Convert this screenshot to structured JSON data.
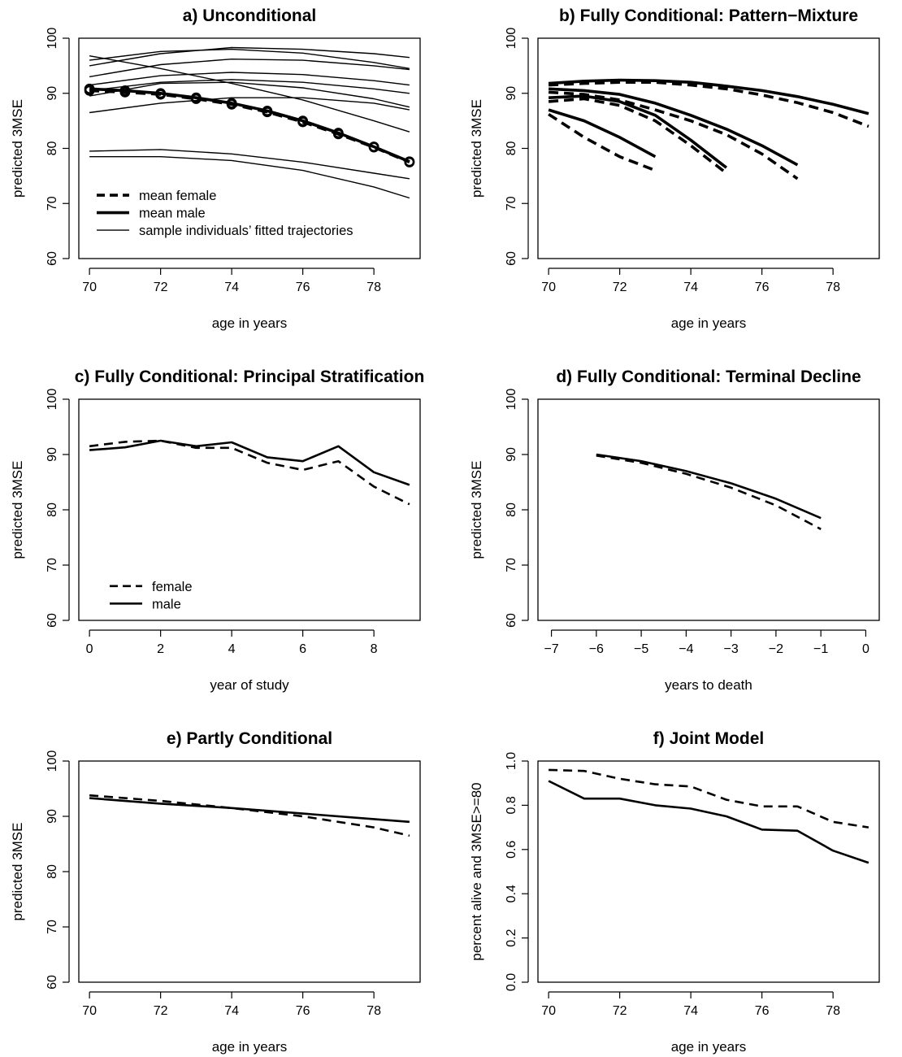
{
  "chart_data": [
    {
      "type": "line",
      "title": "a) Unconditional",
      "xlabel": "age in years",
      "ylabel": "predicted 3MSE",
      "xlim": [
        69.7,
        79.3
      ],
      "ylim": [
        60,
        100
      ],
      "xticks": [
        70,
        72,
        74,
        76,
        78
      ],
      "yticks": [
        60,
        70,
        80,
        90,
        100
      ],
      "legend_position": "bottom-left",
      "legend": [
        {
          "label": "mean female",
          "style": "dashed-thick"
        },
        {
          "label": "mean male",
          "style": "solid-thick"
        },
        {
          "label": "sample individuals’ fitted trajectories",
          "style": "solid-thin"
        }
      ],
      "series": [
        {
          "style": "dashed-thick",
          "markers": true,
          "x": [
            70,
            71,
            72,
            73,
            74,
            75,
            76,
            77,
            78,
            79
          ],
          "y": [
            90.5,
            90.2,
            89.8,
            89.0,
            88.0,
            86.6,
            84.8,
            82.6,
            80.2,
            77.5
          ]
        },
        {
          "style": "solid-thick",
          "markers": true,
          "x": [
            70,
            71,
            72,
            73,
            74,
            75,
            76,
            77,
            78,
            79
          ],
          "y": [
            90.8,
            90.5,
            90.0,
            89.2,
            88.2,
            86.8,
            85.0,
            82.8,
            80.3,
            77.6
          ]
        },
        {
          "style": "solid-thin",
          "x": [
            70,
            72,
            74,
            76,
            78,
            79
          ],
          "y": [
            95.0,
            97.2,
            98.3,
            98.0,
            97.2,
            96.5
          ]
        },
        {
          "style": "solid-thin",
          "x": [
            70,
            72,
            74,
            76,
            78,
            79
          ],
          "y": [
            93.0,
            95.2,
            96.2,
            96.0,
            95.0,
            94.3
          ]
        },
        {
          "style": "solid-thin",
          "x": [
            70,
            72,
            74,
            76,
            78,
            79
          ],
          "y": [
            96.0,
            97.6,
            98.0,
            97.3,
            95.6,
            94.5
          ]
        },
        {
          "style": "solid-thin",
          "x": [
            70,
            72,
            74,
            76,
            78,
            79
          ],
          "y": [
            96.8,
            94.5,
            91.8,
            88.8,
            85.0,
            83.0
          ]
        },
        {
          "style": "solid-thin",
          "x": [
            70,
            72,
            74,
            76,
            78,
            79
          ],
          "y": [
            90.5,
            92.0,
            92.5,
            92.0,
            90.8,
            90.0
          ]
        },
        {
          "style": "solid-thin",
          "x": [
            70,
            72,
            74,
            76,
            78,
            79
          ],
          "y": [
            91.5,
            93.2,
            93.8,
            93.4,
            92.3,
            91.5
          ]
        },
        {
          "style": "solid-thin",
          "x": [
            70,
            72,
            74,
            76,
            78,
            79
          ],
          "y": [
            86.5,
            88.2,
            89.2,
            89.2,
            88.2,
            87.0
          ]
        },
        {
          "style": "solid-thin",
          "x": [
            70,
            72,
            74,
            76,
            78,
            79
          ],
          "y": [
            79.5,
            79.8,
            79.0,
            77.5,
            75.5,
            74.5
          ]
        },
        {
          "style": "solid-thin",
          "x": [
            70,
            72,
            74,
            76,
            78,
            79
          ],
          "y": [
            78.5,
            78.5,
            77.8,
            76.0,
            73.0,
            71.0
          ]
        },
        {
          "style": "solid-thin",
          "x": [
            70,
            72,
            74,
            76,
            78,
            79
          ],
          "y": [
            89.5,
            91.8,
            92.0,
            91.0,
            89.0,
            87.5
          ]
        }
      ]
    },
    {
      "type": "line",
      "title": "b) Fully Conditional:  Pattern−Mixture",
      "xlabel": "age in years",
      "ylabel": "predicted 3MSE",
      "xlim": [
        69.7,
        79.3
      ],
      "ylim": [
        60,
        100
      ],
      "xticks": [
        70,
        72,
        74,
        76,
        78
      ],
      "yticks": [
        60,
        70,
        80,
        90,
        100
      ],
      "series": [
        {
          "style": "solid-thick",
          "x": [
            70,
            71,
            72,
            73,
            74,
            75,
            76,
            77,
            78,
            79
          ],
          "y": [
            91.8,
            92.2,
            92.4,
            92.3,
            92.0,
            91.3,
            90.5,
            89.4,
            88.0,
            86.3
          ]
        },
        {
          "style": "dashed-thick",
          "x": [
            70,
            71,
            72,
            73,
            74,
            75,
            76,
            77,
            78,
            79
          ],
          "y": [
            91.5,
            91.8,
            92.0,
            92.0,
            91.5,
            90.8,
            89.7,
            88.3,
            86.5,
            84.0
          ]
        },
        {
          "style": "solid-thick",
          "x": [
            70,
            71,
            72,
            73,
            74,
            75,
            76,
            77
          ],
          "y": [
            90.8,
            90.5,
            89.8,
            88.2,
            86.0,
            83.5,
            80.5,
            77.0
          ]
        },
        {
          "style": "dashed-thick",
          "x": [
            70,
            71,
            72,
            73,
            74,
            75,
            76,
            77
          ],
          "y": [
            90.2,
            89.8,
            88.8,
            87.0,
            85.0,
            82.5,
            79.0,
            74.5
          ]
        },
        {
          "style": "solid-thick",
          "x": [
            70,
            71,
            72,
            73,
            74,
            75
          ],
          "y": [
            89.2,
            89.5,
            88.5,
            86.0,
            81.5,
            76.5
          ]
        },
        {
          "style": "dashed-thick",
          "x": [
            70,
            71,
            72,
            73,
            74,
            75
          ],
          "y": [
            88.5,
            89.0,
            87.8,
            85.0,
            80.5,
            75.5
          ]
        },
        {
          "style": "solid-thick",
          "x": [
            70,
            71,
            72,
            73
          ],
          "y": [
            87.0,
            85.0,
            82.0,
            78.5
          ]
        },
        {
          "style": "dashed-thick",
          "x": [
            70,
            71,
            72,
            73
          ],
          "y": [
            86.2,
            82.0,
            78.5,
            76.0
          ]
        }
      ]
    },
    {
      "type": "line",
      "title": "c) Fully Conditional: Principal Stratification",
      "xlabel": "year of study",
      "ylabel": "predicted 3MSE",
      "xlim": [
        -0.3,
        9.3
      ],
      "ylim": [
        60,
        100
      ],
      "xticks": [
        0,
        2,
        4,
        6,
        8
      ],
      "yticks": [
        60,
        70,
        80,
        90,
        100
      ],
      "legend_position": "bottom-left",
      "legend": [
        {
          "label": "female",
          "style": "dashed"
        },
        {
          "label": "male",
          "style": "solid"
        }
      ],
      "series": [
        {
          "name": "female",
          "style": "dashed",
          "x": [
            0,
            1,
            2,
            3,
            4,
            5,
            6,
            7,
            8,
            9
          ],
          "y": [
            91.5,
            92.3,
            92.5,
            91.2,
            91.2,
            88.5,
            87.2,
            88.8,
            84.2,
            81.0
          ]
        },
        {
          "name": "male",
          "style": "solid",
          "x": [
            0,
            1,
            2,
            3,
            4,
            5,
            6,
            7,
            8,
            9
          ],
          "y": [
            90.8,
            91.3,
            92.5,
            91.5,
            92.2,
            89.5,
            88.8,
            91.5,
            86.8,
            84.5
          ]
        }
      ]
    },
    {
      "type": "line",
      "title": "d) Fully Conditional:  Terminal Decline",
      "xlabel": "years to death",
      "ylabel": "predicted 3MSE",
      "xlim": [
        -7.3,
        0.3
      ],
      "ylim": [
        60,
        100
      ],
      "xticks": [
        -7,
        -6,
        -5,
        -4,
        -3,
        -2,
        -1,
        0
      ],
      "xtick_labels": [
        "−7",
        "−6",
        "−5",
        "−4",
        "−3",
        "−2",
        "−1",
        "0"
      ],
      "yticks": [
        60,
        70,
        80,
        90,
        100
      ],
      "series": [
        {
          "style": "solid",
          "x": [
            -6,
            -5,
            -4,
            -3,
            -2,
            -1
          ],
          "y": [
            90.0,
            88.8,
            87.0,
            84.8,
            82.0,
            78.5
          ]
        },
        {
          "style": "dashed",
          "x": [
            -6,
            -5,
            -4,
            -3,
            -2,
            -1
          ],
          "y": [
            89.8,
            88.5,
            86.5,
            84.0,
            80.8,
            76.5
          ]
        }
      ]
    },
    {
      "type": "line",
      "title": "e) Partly Conditional",
      "xlabel": "age in years",
      "ylabel": "predicted 3MSE",
      "xlim": [
        69.7,
        79.3
      ],
      "ylim": [
        60,
        100
      ],
      "xticks": [
        70,
        72,
        74,
        76,
        78
      ],
      "yticks": [
        60,
        70,
        80,
        90,
        100
      ],
      "series": [
        {
          "style": "solid",
          "x": [
            70,
            72,
            74,
            76,
            78,
            79
          ],
          "y": [
            93.3,
            92.3,
            91.5,
            90.5,
            89.5,
            89.0
          ]
        },
        {
          "style": "dashed",
          "x": [
            70,
            72,
            74,
            76,
            78,
            79
          ],
          "y": [
            93.8,
            92.8,
            91.5,
            90.0,
            88.0,
            86.5
          ]
        }
      ]
    },
    {
      "type": "line",
      "title": "f) Joint Model",
      "xlabel": "age in years",
      "ylabel": "percent alive and 3MSE>=80",
      "xlim": [
        69.7,
        79.3
      ],
      "ylim": [
        0,
        1
      ],
      "xticks": [
        70,
        72,
        74,
        76,
        78
      ],
      "yticks": [
        0.0,
        0.2,
        0.4,
        0.6,
        0.8,
        1.0
      ],
      "ytick_labels": [
        "0.0",
        "0.2",
        "0.4",
        "0.6",
        "0.8",
        "1.0"
      ],
      "series": [
        {
          "style": "dashed",
          "x": [
            70,
            71,
            72,
            73,
            74,
            75,
            76,
            77,
            78,
            79
          ],
          "y": [
            0.96,
            0.955,
            0.92,
            0.895,
            0.885,
            0.825,
            0.795,
            0.795,
            0.725,
            0.7
          ]
        },
        {
          "style": "solid",
          "x": [
            70,
            71,
            72,
            73,
            74,
            75,
            76,
            77,
            78,
            79
          ],
          "y": [
            0.91,
            0.83,
            0.83,
            0.8,
            0.785,
            0.75,
            0.69,
            0.685,
            0.595,
            0.54
          ]
        }
      ]
    }
  ]
}
